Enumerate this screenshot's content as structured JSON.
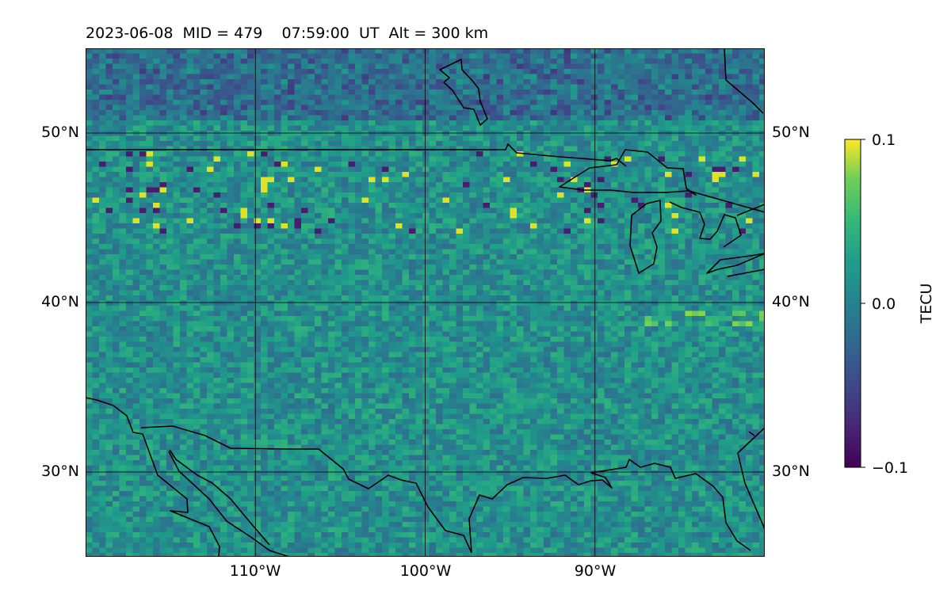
{
  "title": "2023-06-08  MID = 479    07:59:00  UT  Alt = 300 km",
  "map": {
    "lon_range": [
      -120,
      -80
    ],
    "lat_range": [
      25,
      55
    ],
    "lat_ticks": [
      {
        "value": 50,
        "label": "50°N"
      },
      {
        "value": 40,
        "label": "40°N"
      },
      {
        "value": 30,
        "label": "30°N"
      }
    ],
    "lon_ticks": [
      {
        "value": -110,
        "label": "110°W"
      },
      {
        "value": -100,
        "label": "100°W"
      },
      {
        "value": -90,
        "label": "90°W"
      }
    ],
    "gridlines": true,
    "base_color": "#2d7f8c"
  },
  "colorbar": {
    "label": "TECU",
    "tick_labels": [
      "0.1",
      "0.0",
      "−0.1"
    ],
    "range": [
      -0.1,
      0.1
    ],
    "colormap": "viridis"
  }
}
